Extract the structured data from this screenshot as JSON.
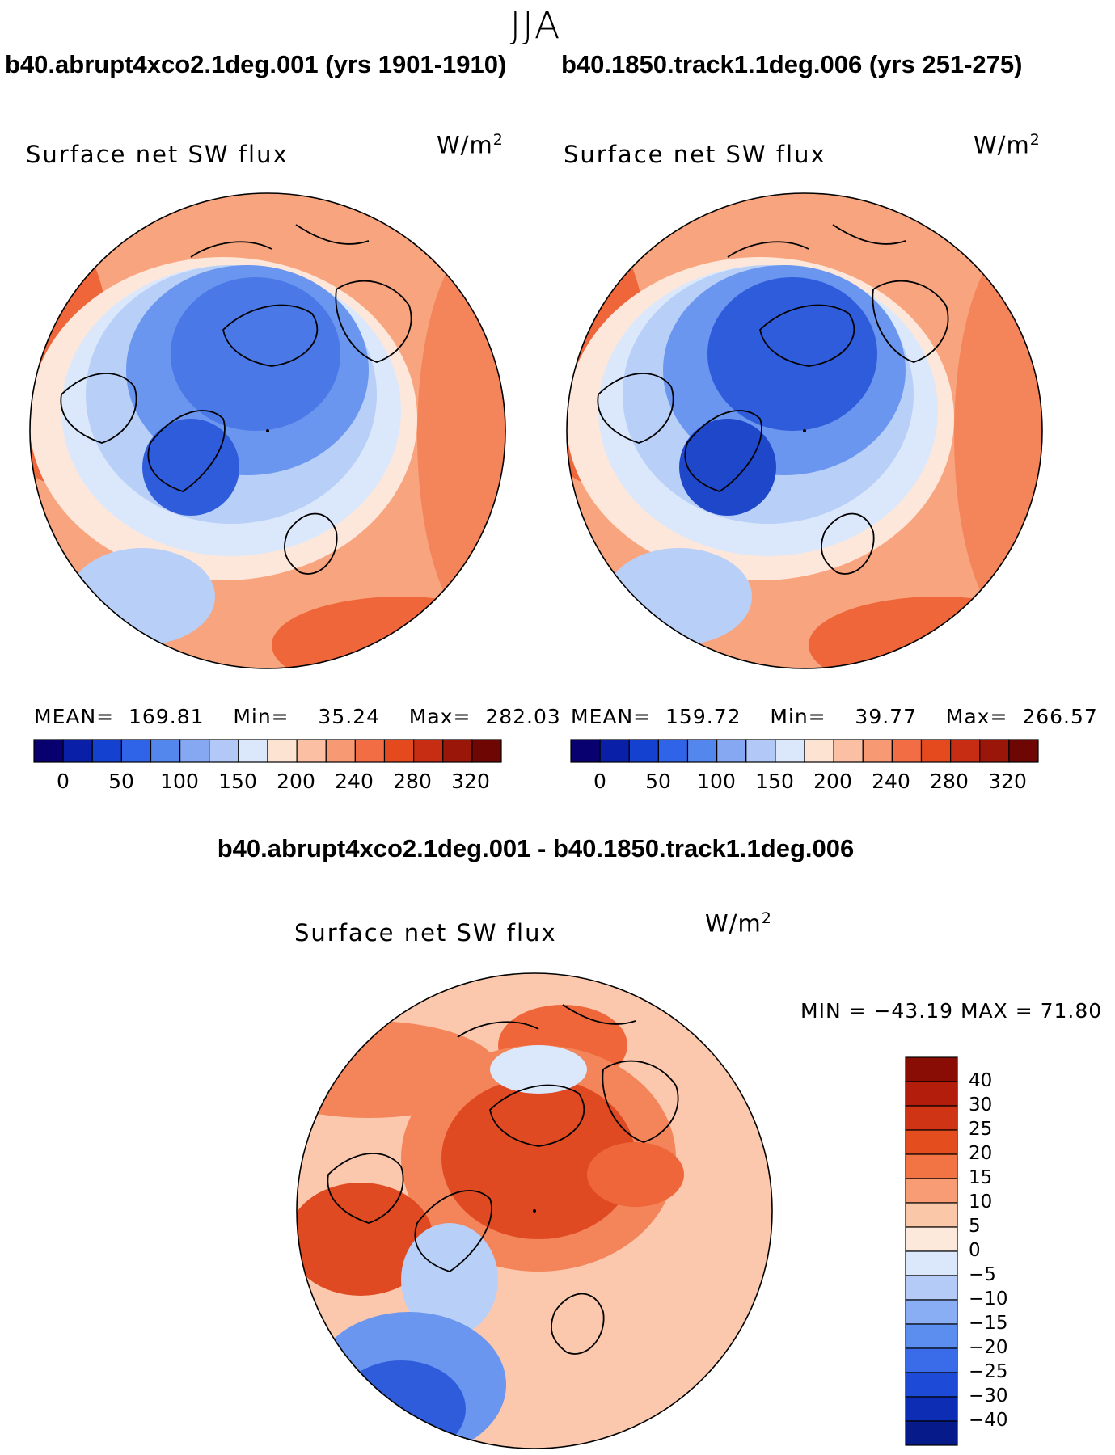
{
  "season": "JJA",
  "panels": [
    {
      "case_title": "b40.abrupt4xco2.1deg.001 (yrs 1901-1910)",
      "field": "Surface net SW flux",
      "units_base": "W/m",
      "units_exp": "2",
      "mean_label": "MEAN=",
      "mean": "169.81",
      "min_label": "Min=",
      "min": "35.24",
      "max_label": "Max=",
      "max": "282.03"
    },
    {
      "case_title": "b40.1850.track1.1deg.006 (yrs 251-275)",
      "field": "Surface net SW flux",
      "units_base": "W/m",
      "units_exp": "2",
      "mean_label": "MEAN=",
      "mean": "159.72",
      "min_label": "Min=",
      "min": "39.77",
      "max_label": "Max=",
      "max": "266.57"
    }
  ],
  "colorbar": {
    "labels": [
      "0",
      "50",
      "100",
      "150",
      "200",
      "240",
      "280",
      "320"
    ],
    "colors": [
      "#08006e",
      "#0a1fa8",
      "#1541d1",
      "#2f64e8",
      "#5487ee",
      "#86a8f3",
      "#b2c9f7",
      "#dbe8fb",
      "#fde3d2",
      "#fbc0a3",
      "#f79a74",
      "#f26c44",
      "#e54a1f",
      "#c62d13",
      "#9a1609",
      "#6e0603"
    ]
  },
  "difference": {
    "title": "b40.abrupt4xco2.1deg.001 - b40.1850.track1.1deg.006",
    "field": "Surface net SW flux",
    "units_base": "W/m",
    "units_exp": "2",
    "minmax": "MIN = −43.19 MAX =   71.80",
    "colorbar_labels": [
      "40",
      "30",
      "25",
      "20",
      "15",
      "10",
      "5",
      "0",
      "−5",
      "−10",
      "−15",
      "−20",
      "−25",
      "−30",
      "−40"
    ],
    "colorbar_colors": [
      "#8a0d05",
      "#b21d0c",
      "#cf3414",
      "#e44e1f",
      "#f27344",
      "#f89c76",
      "#fbc7a9",
      "#fde8dc",
      "#dbe8fb",
      "#b5cbf7",
      "#8aaef4",
      "#5c8ef0",
      "#3a6cea",
      "#1e4ad8",
      "#0e2db5",
      "#061a8a"
    ]
  },
  "map": {
    "blue_palette": [
      "#dbe8fb",
      "#b8cff8",
      "#8fb3f4",
      "#6a96ef",
      "#4a78e6",
      "#2f5cdb",
      "#1f47c9"
    ],
    "red_palette": [
      "#fde7da",
      "#fbc8ad",
      "#f8a57f",
      "#f4845a",
      "#ee663a",
      "#df4a22",
      "#c23512"
    ],
    "coast_color": "#000000"
  }
}
